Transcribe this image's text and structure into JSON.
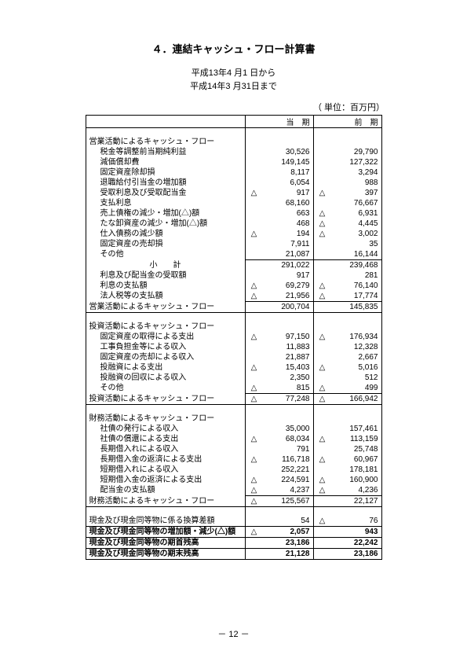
{
  "title": "４．連結キャッシュ・フロー計算書",
  "period_line1": "平成13年4 月1 日から",
  "period_line2": "平成14年3 月31日まで",
  "unit": "（ 単位：百万円）",
  "col_current": "当　期",
  "col_prior": "前　期",
  "footer": "－ 12 －",
  "tri": "△",
  "sections": {
    "op_header": "営業活動によるキャッシュ・フロー",
    "op": [
      {
        "label": "税金等調整前当期純利益",
        "cn": false,
        "cv": "30,526",
        "pn": false,
        "pv": "29,790"
      },
      {
        "label": "減価償却費",
        "cn": false,
        "cv": "149,145",
        "pn": false,
        "pv": "127,322"
      },
      {
        "label": "固定資産除却損",
        "cn": false,
        "cv": "8,117",
        "pn": false,
        "pv": "3,294"
      },
      {
        "label": "退職給付引当金の増加額",
        "cn": false,
        "cv": "6,054",
        "pn": false,
        "pv": "988"
      },
      {
        "label": "受取利息及び受取配当金",
        "cn": true,
        "cv": "917",
        "pn": true,
        "pv": "397"
      },
      {
        "label": "支払利息",
        "cn": false,
        "cv": "68,160",
        "pn": false,
        "pv": "76,667"
      },
      {
        "label": "売上債権の減少・増加(△)額",
        "cn": false,
        "cv": "663",
        "pn": true,
        "pv": "6,931"
      },
      {
        "label": "たな卸資産の減少・増加(△)額",
        "cn": false,
        "cv": "468",
        "pn": true,
        "pv": "4,445"
      },
      {
        "label": "仕入債務の減少額",
        "cn": true,
        "cv": "194",
        "pn": true,
        "pv": "3,002"
      },
      {
        "label": "固定資産の売却損",
        "cn": false,
        "cv": "7,911",
        "pn": false,
        "pv": "35"
      },
      {
        "label": "その他",
        "cn": false,
        "cv": "21,087",
        "pn": false,
        "pv": "16,144"
      }
    ],
    "op_subtotal": {
      "label": "小　　計",
      "cn": false,
      "cv": "291,022",
      "pn": false,
      "pv": "239,468"
    },
    "op_post": [
      {
        "label": "利息及び配当金の受取額",
        "cn": false,
        "cv": "917",
        "pn": false,
        "pv": "281"
      },
      {
        "label": "利息の支払額",
        "cn": true,
        "cv": "69,279",
        "pn": true,
        "pv": "76,140"
      },
      {
        "label": "法人税等の支払額",
        "cn": true,
        "cv": "21,956",
        "pn": true,
        "pv": "17,774"
      }
    ],
    "op_total": {
      "label": "営業活動によるキャッシュ・フロー",
      "cn": false,
      "cv": "200,704",
      "pn": false,
      "pv": "145,835"
    },
    "inv_header": "投資活動によるキャッシュ・フロー",
    "inv": [
      {
        "label": "固定資産の取得による支出",
        "cn": true,
        "cv": "97,150",
        "pn": true,
        "pv": "176,934"
      },
      {
        "label": "工事負担金等による収入",
        "cn": false,
        "cv": "11,883",
        "pn": false,
        "pv": "12,328"
      },
      {
        "label": "固定資産の売却による収入",
        "cn": false,
        "cv": "21,887",
        "pn": false,
        "pv": "2,667"
      },
      {
        "label": "投融資による支出",
        "cn": true,
        "cv": "15,403",
        "pn": true,
        "pv": "5,016"
      },
      {
        "label": "投融資の回収による収入",
        "cn": false,
        "cv": "2,350",
        "pn": false,
        "pv": "512"
      },
      {
        "label": "その他",
        "cn": true,
        "cv": "815",
        "pn": true,
        "pv": "499"
      }
    ],
    "inv_total": {
      "label": "投資活動によるキャッシュ・フロー",
      "cn": true,
      "cv": "77,248",
      "pn": true,
      "pv": "166,942"
    },
    "fin_header": "財務活動によるキャッシュ・フロー",
    "fin": [
      {
        "label": "社債の発行による収入",
        "cn": false,
        "cv": "35,000",
        "pn": false,
        "pv": "157,461"
      },
      {
        "label": "社債の償還による支出",
        "cn": true,
        "cv": "68,034",
        "pn": true,
        "pv": "113,159"
      },
      {
        "label": "長期借入れによる収入",
        "cn": false,
        "cv": "791",
        "pn": false,
        "pv": "25,748"
      },
      {
        "label": "長期借入金の返済による支出",
        "cn": true,
        "cv": "116,718",
        "pn": true,
        "pv": "60,967"
      },
      {
        "label": "短期借入れによる収入",
        "cn": false,
        "cv": "252,221",
        "pn": false,
        "pv": "178,181"
      },
      {
        "label": "短期借入金の返済による支出",
        "cn": true,
        "cv": "224,591",
        "pn": true,
        "pv": "160,900"
      },
      {
        "label": "配当金の支払額",
        "cn": true,
        "cv": "4,237",
        "pn": true,
        "pv": "4,236"
      }
    ],
    "fin_total": {
      "label": "財務活動によるキャッシュ・フロー",
      "cn": true,
      "cv": "125,567",
      "pn": false,
      "pv": "22,127"
    },
    "end": [
      {
        "label": "現金及び現金同等物に係る換算差額",
        "cn": false,
        "cv": "54",
        "pn": true,
        "pv": "76"
      },
      {
        "label": "現金及び現金同等物の増加額・減少(△)額",
        "cn": true,
        "cv": "2,057",
        "pn": false,
        "pv": "943"
      },
      {
        "label": "現金及び現金同等物の期首残高",
        "cn": false,
        "cv": "23,186",
        "pn": false,
        "pv": "22,242"
      },
      {
        "label": "現金及び現金同等物の期末残高",
        "cn": false,
        "cv": "21,128",
        "pn": false,
        "pv": "23,186"
      }
    ]
  }
}
